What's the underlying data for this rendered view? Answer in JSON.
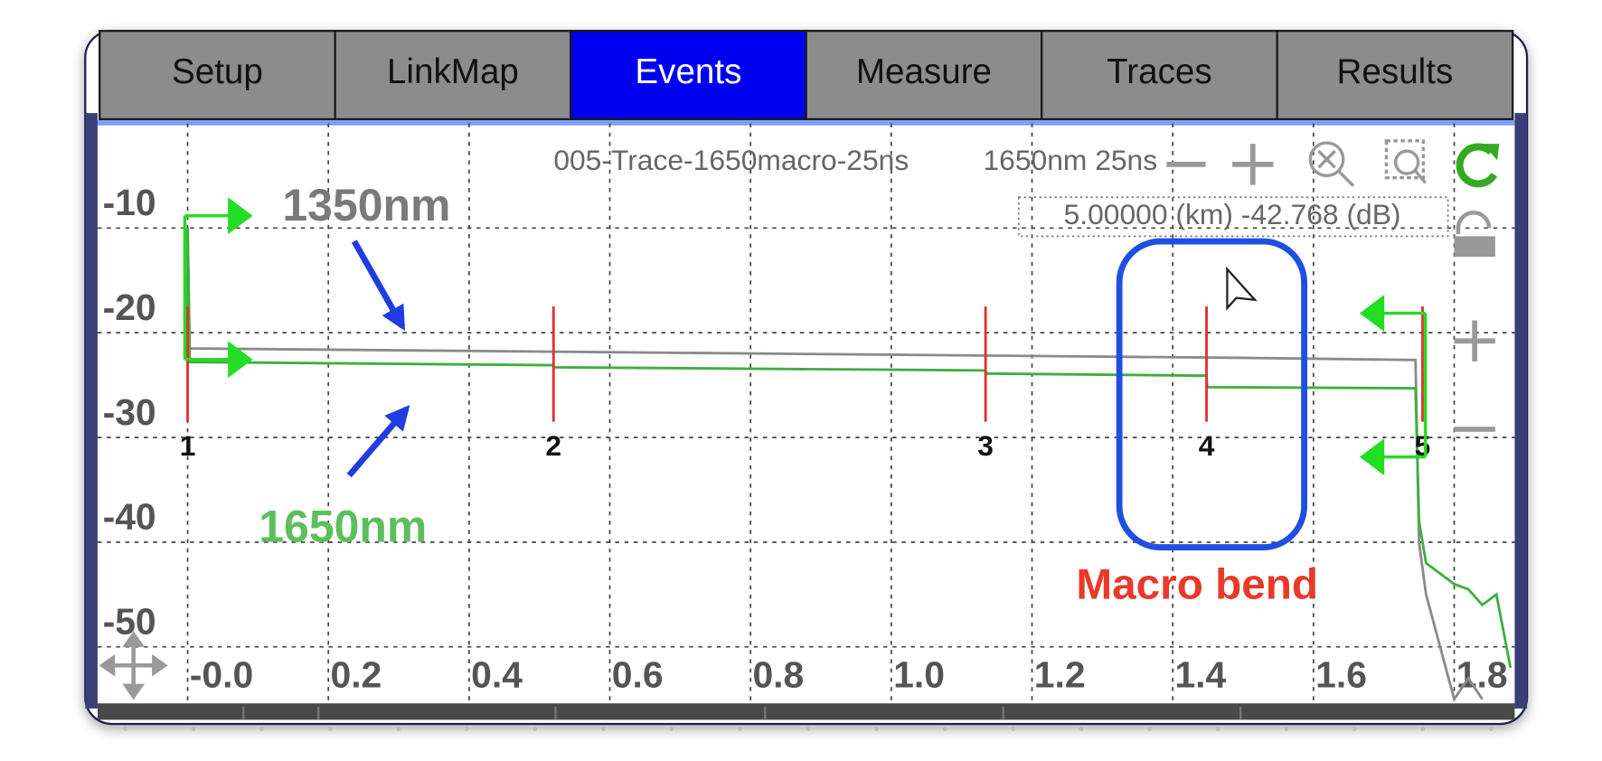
{
  "tabs": [
    "Setup",
    "LinkMap",
    "Events",
    "Measure",
    "Traces",
    "Results"
  ],
  "chart_data": {
    "type": "line",
    "title": "005-Trace-1650macro-25ns",
    "subtitle": "1650nm 25ns",
    "cursor_readout": "5.00000 (km) -42.768 (dB)",
    "annotation": "Macro bend",
    "xlim": [
      -0.128,
      1.886
    ],
    "ylim": [
      -55.4,
      0
    ],
    "xticks": [
      {
        "value": 0,
        "label": "-0.0"
      },
      0.2,
      0.4,
      0.6,
      0.8,
      {
        "value": 1,
        "label": "1.0"
      },
      1.2,
      1.4,
      1.6,
      1.8
    ],
    "yticks": [
      -10,
      -20,
      -30,
      -40,
      -50
    ],
    "grid": true,
    "series": [
      {
        "name": "1350nm",
        "color": "#8a8a8a",
        "x": [
          0,
          0,
          0.003,
          0.5,
          1.0,
          1.5,
          1.745,
          1.75,
          1.76,
          1.78,
          1.8,
          1.82,
          1.84
        ],
        "values": [
          -22,
          -10,
          -21.5,
          -21.8,
          -22.1,
          -22.4,
          -22.6,
          -40,
          -45,
          -50,
          -55,
          -53,
          -55
        ]
      },
      {
        "name": "1650nm",
        "color": "#3fae3f",
        "x": [
          0,
          0,
          0.003,
          0.52,
          0.521,
          1.134,
          1.135,
          1.448,
          1.449,
          1.745,
          1.75,
          1.76,
          1.78,
          1.8,
          1.82,
          1.84,
          1.86,
          1.88
        ],
        "values": [
          -23,
          -10,
          -22.8,
          -23.1,
          -23.3,
          -23.6,
          -23.9,
          -24.1,
          -25.2,
          -25.3,
          -38,
          -42,
          -43,
          -44,
          -44.5,
          -46,
          -45,
          -52
        ]
      }
    ],
    "events": [
      {
        "label": "1",
        "x": 0
      },
      {
        "label": "2",
        "x": 0.52
      },
      {
        "label": "3",
        "x": 1.134
      },
      {
        "label": "4",
        "x": 1.448
      },
      {
        "label": "5",
        "x": 1.755
      }
    ],
    "event_color": "#e03030"
  }
}
